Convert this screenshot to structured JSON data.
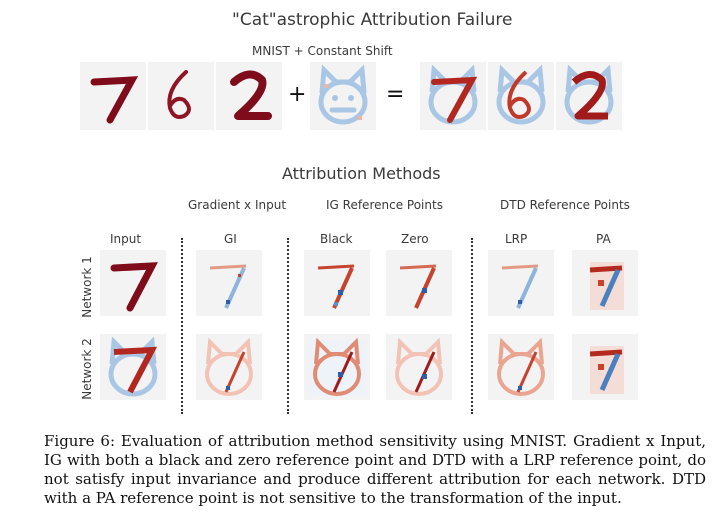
{
  "figure": {
    "title": "\"Cat\"astrophic Attribution Failure",
    "top_subtitle": "MNIST + Constant Shift",
    "operators": {
      "plus": "+",
      "equals": "="
    },
    "attr_title": "Attribution Methods",
    "groups": [
      "Gradient x Input",
      "IG Reference Points",
      "DTD Reference Points"
    ],
    "columns": [
      "Input",
      "GI",
      "Black",
      "Zero",
      "LRP",
      "PA"
    ],
    "rows": [
      "Network 1",
      "Network 2"
    ],
    "colors": {
      "ink": "#7f0c1b",
      "attr_red": "#c5432f",
      "attr_blue": "#5a8fc8",
      "cat_blue": "#a9c6e4",
      "tile_bg": "#f3f3f3"
    },
    "caption": "Figure 6: Evaluation of attribution method sensitivity using MNIST. Gradient x Input, IG with both a black and zero reference point and DTD with a LRP reference point, do not satisfy input invariance and produce different attribution for each network. DTD with a PA reference point is not sensitive to the transformation of the input."
  }
}
